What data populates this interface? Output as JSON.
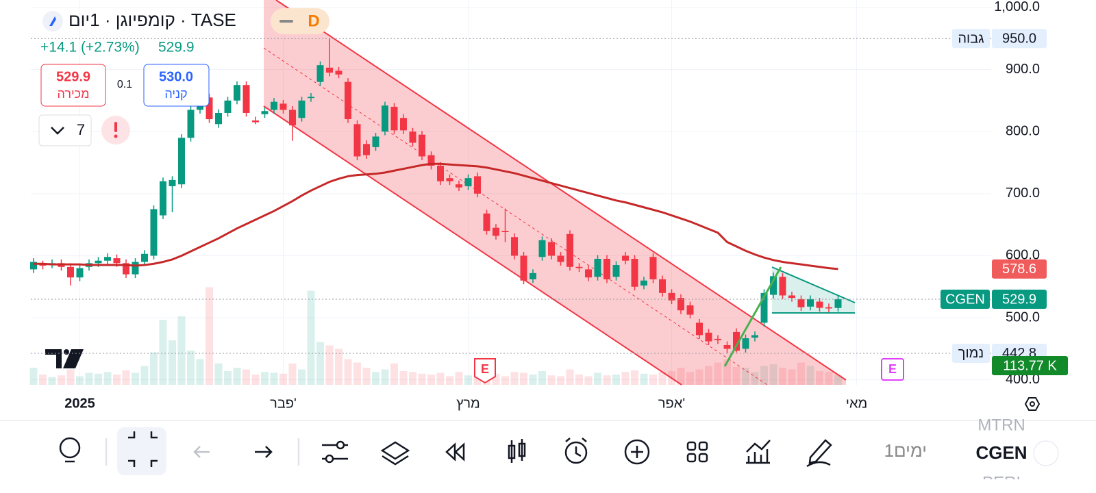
{
  "chart_data": {
    "type": "candlestick",
    "header": {
      "title": "קומפיוגן · 1יום · TASE",
      "interval_badge": "D",
      "change": "+14.1 (+2.73%)",
      "last": "529.9",
      "sell_price": "529.9",
      "sell_label": "מכירה",
      "spread": "0.1",
      "buy_price": "530.0",
      "buy_label": "קניה",
      "alerts_count": "7"
    },
    "open": [
      578,
      586,
      586,
      588,
      582,
      565,
      582,
      588,
      592,
      596,
      588,
      570,
      590,
      600,
      665,
      712,
      715,
      790,
      835,
      855,
      812,
      830,
      850,
      875,
      818,
      828,
      835,
      845,
      835,
      822,
      854,
      880,
      903,
      898,
      880,
      812,
      780,
      775,
      800,
      840,
      822,
      800,
      795,
      762,
      745,
      725,
      715,
      712,
      728,
      668,
      645,
      640,
      630,
      600,
      562,
      598,
      622,
      600,
      635,
      582,
      578,
      566,
      595,
      566,
      600,
      595,
      552,
      598,
      562,
      540,
      532,
      520,
      492,
      476,
      466,
      456,
      477,
      450,
      468,
      492,
      537,
      566,
      536,
      530,
      518,
      526,
      517,
      515.8
    ],
    "high": [
      596,
      592,
      594,
      594,
      588,
      586,
      594,
      598,
      604,
      602,
      594,
      596,
      609,
      681,
      726,
      728,
      796,
      841,
      861,
      861,
      836,
      856,
      881,
      881,
      824,
      839,
      854,
      851,
      841,
      856,
      862,
      913,
      950,
      904,
      886,
      818,
      786,
      798,
      848,
      846,
      828,
      806,
      801,
      768,
      751,
      731,
      721,
      731,
      734,
      674,
      651,
      676,
      636,
      606,
      578,
      631,
      628,
      606,
      641,
      588,
      584,
      601,
      601,
      591,
      606,
      601,
      566,
      604,
      568,
      546,
      538,
      526,
      498,
      482,
      472,
      462,
      483,
      473,
      478,
      546,
      573,
      572,
      542,
      536,
      536,
      532,
      523,
      536
    ],
    "low": [
      572,
      578,
      580,
      576,
      552,
      559,
      576,
      582,
      586,
      582,
      564,
      564,
      584,
      594,
      659,
      670,
      709,
      784,
      829,
      814,
      806,
      824,
      844,
      824,
      812,
      822,
      829,
      829,
      785,
      816,
      848,
      874,
      889,
      886,
      814,
      754,
      756,
      769,
      794,
      796,
      796,
      776,
      754,
      739,
      714,
      714,
      704,
      706,
      694,
      634,
      626,
      622,
      594,
      554,
      556,
      592,
      594,
      584,
      576,
      574,
      559,
      560,
      556,
      560,
      586,
      544,
      546,
      556,
      534,
      522,
      506,
      499,
      466,
      456,
      458,
      442.8,
      444,
      444,
      462,
      486,
      531,
      530,
      526,
      511,
      512,
      510,
      509,
      510
    ],
    "close": [
      590,
      584,
      588,
      582,
      565,
      580,
      588,
      592,
      598,
      588,
      570,
      590,
      603,
      675,
      720,
      722,
      790,
      835,
      855,
      820,
      830,
      850,
      875,
      830,
      815,
      833,
      848,
      835,
      810,
      850,
      856,
      907,
      895,
      892,
      820,
      760,
      762,
      792,
      842,
      802,
      802,
      782,
      760,
      745,
      720,
      720,
      710,
      725,
      700,
      640,
      632,
      638,
      600,
      560,
      572,
      625,
      600,
      590,
      582,
      580,
      565,
      595,
      562,
      585,
      592,
      550,
      560,
      562,
      540,
      528,
      512,
      505,
      472,
      462,
      464,
      450,
      447,
      467,
      472,
      540,
      567,
      536,
      532,
      517,
      530,
      516,
      515,
      529.9
    ],
    "volume": [
      200,
      120,
      90,
      110,
      180,
      100,
      140,
      130,
      150,
      120,
      170,
      140,
      220,
      380,
      760,
      520,
      800,
      400,
      300,
      1140,
      250,
      160,
      200,
      180,
      120,
      150,
      140,
      130,
      250,
      180,
      1100,
      500,
      460,
      420,
      300,
      260,
      200,
      150,
      180,
      250,
      160,
      150,
      130,
      120,
      140,
      100,
      150,
      110,
      160,
      180,
      130,
      100,
      150,
      140,
      120,
      160,
      110,
      100,
      180,
      120,
      100,
      140,
      110,
      120,
      150,
      170,
      130,
      120,
      150,
      160,
      200,
      150,
      180,
      220,
      260,
      300,
      210,
      200,
      150,
      220,
      240,
      200,
      180,
      260,
      220,
      160,
      150,
      113.77
    ],
    "volume_last_label": "113.77 K",
    "vlim": [
      0,
      1200
    ],
    "ma": {
      "color": "#c62828",
      "values": [
        587,
        587,
        586,
        586,
        586,
        586,
        585,
        585,
        585,
        585,
        585,
        584,
        585,
        587,
        590,
        594,
        600,
        607,
        614,
        621,
        628,
        636,
        644,
        651,
        658,
        665,
        672,
        680,
        688,
        697,
        705,
        712,
        719,
        724,
        728,
        730,
        731,
        732,
        734,
        737,
        740,
        743,
        746,
        748,
        748,
        747,
        746,
        745,
        744,
        742,
        739,
        736,
        733,
        729,
        725,
        721,
        717,
        713,
        709,
        705,
        701,
        697,
        693,
        689,
        686,
        682,
        678,
        674,
        670,
        665,
        660,
        655,
        649,
        643,
        637,
        622,
        615,
        608,
        602,
        597,
        593,
        590,
        588,
        586,
        584,
        582,
        580,
        578.6
      ],
      "last_label": "578.6"
    },
    "up_color": "#089981",
    "down_color": "#f23645",
    "symbol": "CGEN",
    "close_last_label": "529.9",
    "high_marker": {
      "name": "גבוה",
      "value": 950,
      "label": "950.0"
    },
    "low_marker": {
      "name": "נמוך",
      "value": 442.8,
      "label": "442.8"
    },
    "ylim": [
      392,
      1012
    ],
    "yticks": [
      {
        "value": 400,
        "label": "400.0"
      },
      {
        "value": 500,
        "label": "500.0"
      },
      {
        "value": 600,
        "label": "600.0"
      },
      {
        "value": 700,
        "label": "700.0"
      },
      {
        "value": 800,
        "label": "800.0"
      },
      {
        "value": 900,
        "label": "900.0"
      },
      {
        "value": 1000,
        "label": "1,000.0"
      }
    ],
    "xticks": [
      {
        "value": 5,
        "label": "2025"
      },
      {
        "value": 27,
        "label": "פבר'"
      },
      {
        "value": 47,
        "label": "מרץ"
      },
      {
        "value": 69,
        "label": "אפר'"
      },
      {
        "value": 89,
        "label": "מאי"
      }
    ],
    "grid": true,
    "earnings_markers": [
      "E",
      "E"
    ],
    "toolbar": {
      "range": "1ימים",
      "symbol": "CGEN",
      "symbol_above": "MTRN",
      "symbol_below": "PERI"
    }
  }
}
